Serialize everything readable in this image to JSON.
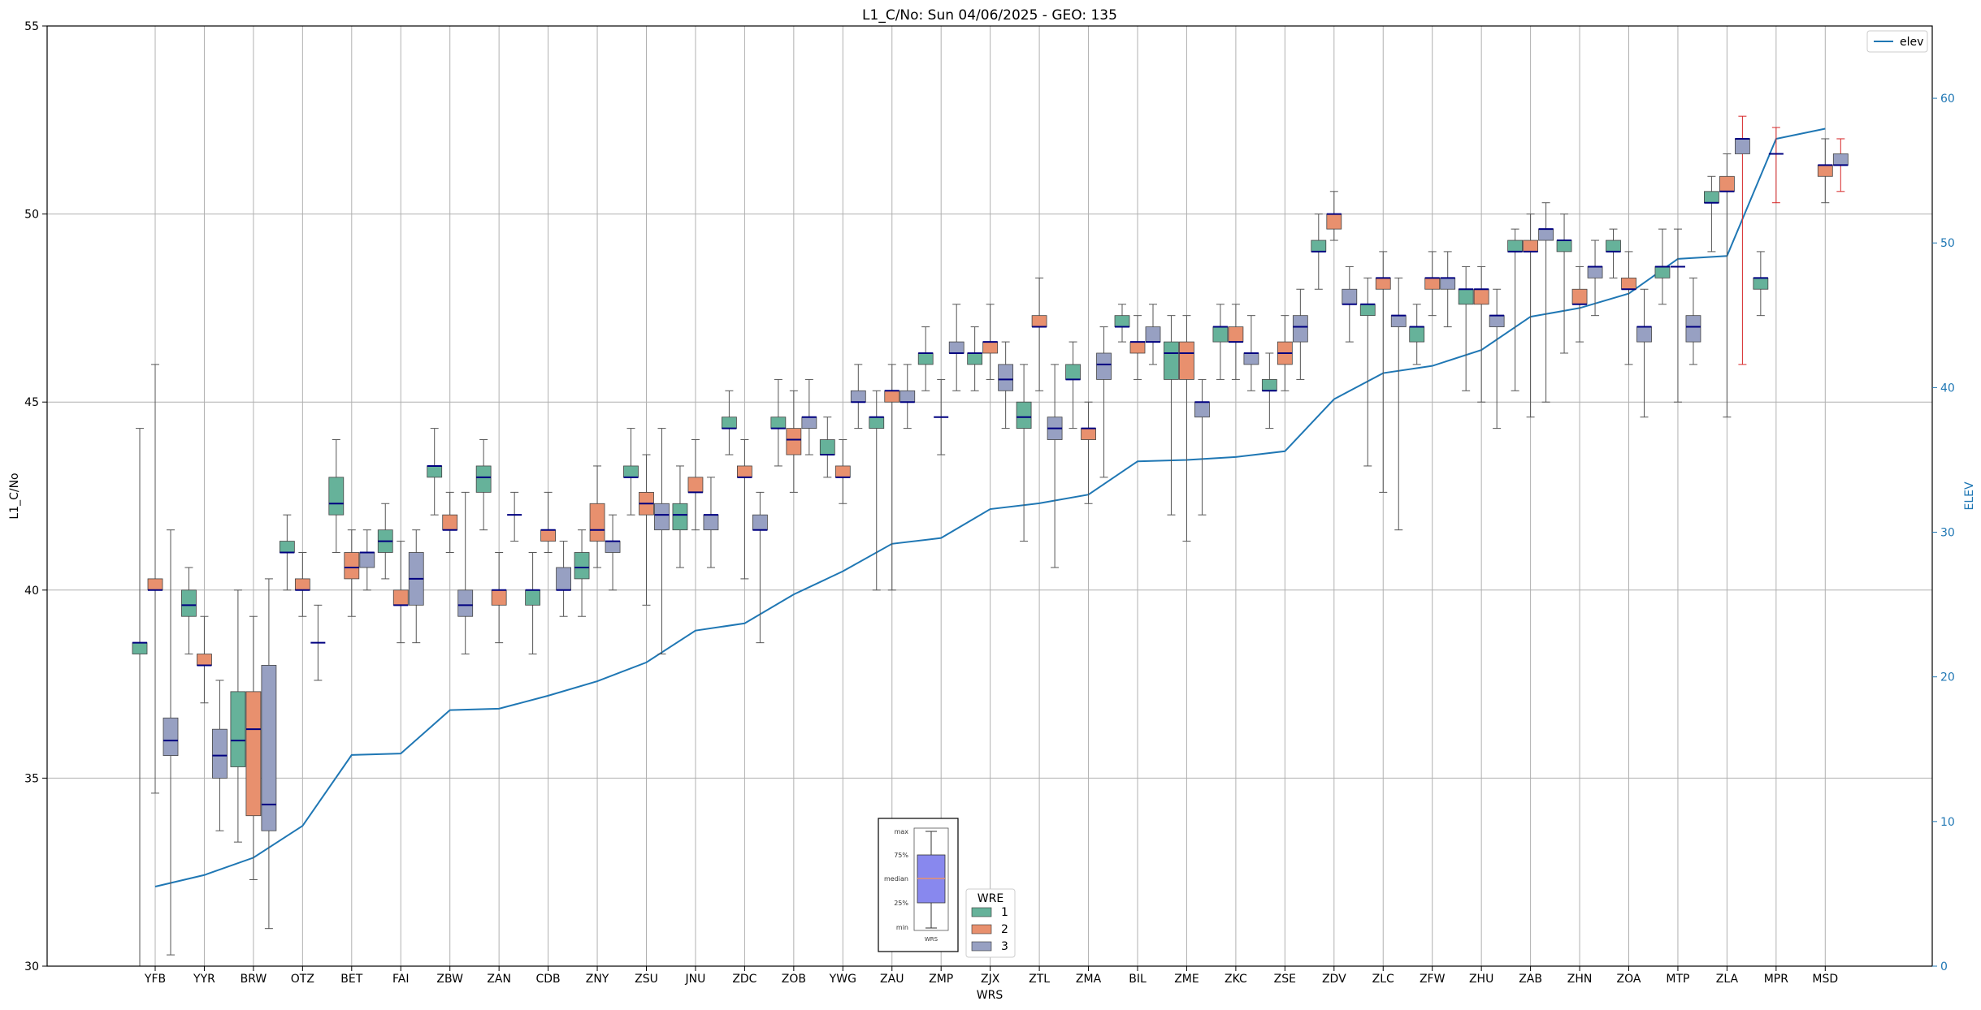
{
  "chart_data": {
    "type": "box",
    "title": "L1_C/No: Sun 04/06/2025 - GEO: 135",
    "xlabel": "WRS",
    "ylabel": "L1_C/No",
    "y2label": "ELEV",
    "ylim": [
      30,
      55
    ],
    "y2lim": [
      0,
      65
    ],
    "yticks": [
      30,
      35,
      40,
      45,
      50,
      55
    ],
    "y2ticks": [
      0,
      10,
      20,
      30,
      40,
      50,
      60
    ],
    "grid": true,
    "categories": [
      "YFB",
      "YYR",
      "BRW",
      "OTZ",
      "BET",
      "FAI",
      "ZBW",
      "ZAN",
      "CDB",
      "ZNY",
      "ZSU",
      "JNU",
      "ZDC",
      "ZOB",
      "YWG",
      "ZAU",
      "ZMP",
      "ZJX",
      "ZTL",
      "ZMA",
      "BIL",
      "ZME",
      "ZKC",
      "ZSE",
      "ZDV",
      "ZLC",
      "ZFW",
      "ZHU",
      "ZAB",
      "ZHN",
      "ZOA",
      "MTP",
      "ZLA",
      "MPR",
      "MSD"
    ],
    "colors": {
      "wre1": "#66b29a",
      "wre2": "#e8906e",
      "wre3": "#97a0c2",
      "median": "#000080",
      "elev_line": "#1f77b4",
      "alt_whisker": "#d62728"
    },
    "legend": {
      "title": "WRE",
      "entries": [
        "1",
        "2",
        "3"
      ],
      "placement": "bottom-center"
    },
    "line_legend": {
      "label": "elev",
      "placement": "top-right"
    },
    "box_key": {
      "labels": [
        "max",
        "75%",
        "median",
        "25%",
        "min"
      ],
      "caption": "WRS"
    },
    "boxes": [
      {
        "cat": "YFB",
        "wre": 1,
        "min": 30.0,
        "q1": 38.3,
        "median": 38.6,
        "q3": 38.6,
        "max": 44.3
      },
      {
        "cat": "YFB",
        "wre": 2,
        "min": 34.6,
        "q1": 40.0,
        "median": 40.0,
        "q3": 40.3,
        "max": 46.0
      },
      {
        "cat": "YFB",
        "wre": 3,
        "min": 30.3,
        "q1": 35.6,
        "median": 36.0,
        "q3": 36.6,
        "max": 41.6
      },
      {
        "cat": "YYR",
        "wre": 1,
        "min": 38.3,
        "q1": 39.3,
        "median": 39.6,
        "q3": 40.0,
        "max": 40.6
      },
      {
        "cat": "YYR",
        "wre": 2,
        "min": 37.0,
        "q1": 38.0,
        "median": 38.0,
        "q3": 38.3,
        "max": 39.3
      },
      {
        "cat": "YYR",
        "wre": 3,
        "min": 33.6,
        "q1": 35.0,
        "median": 35.6,
        "q3": 36.3,
        "max": 37.6
      },
      {
        "cat": "BRW",
        "wre": 1,
        "min": 33.3,
        "q1": 35.3,
        "median": 36.0,
        "q3": 37.3,
        "max": 40.0
      },
      {
        "cat": "BRW",
        "wre": 2,
        "min": 32.3,
        "q1": 34.0,
        "median": 36.3,
        "q3": 37.3,
        "max": 39.3
      },
      {
        "cat": "BRW",
        "wre": 3,
        "min": 31.0,
        "q1": 33.6,
        "median": 34.3,
        "q3": 38.0,
        "max": 40.3
      },
      {
        "cat": "OTZ",
        "wre": 1,
        "min": 40.0,
        "q1": 41.0,
        "median": 41.0,
        "q3": 41.3,
        "max": 42.0
      },
      {
        "cat": "OTZ",
        "wre": 2,
        "min": 39.3,
        "q1": 40.0,
        "median": 40.0,
        "q3": 40.3,
        "max": 41.0
      },
      {
        "cat": "OTZ",
        "wre": 3,
        "min": 37.6,
        "q1": 38.6,
        "median": 38.6,
        "q3": 38.6,
        "max": 39.6
      },
      {
        "cat": "BET",
        "wre": 1,
        "min": 41.0,
        "q1": 42.0,
        "median": 42.3,
        "q3": 43.0,
        "max": 44.0
      },
      {
        "cat": "BET",
        "wre": 2,
        "min": 39.3,
        "q1": 40.3,
        "median": 40.6,
        "q3": 41.0,
        "max": 41.6
      },
      {
        "cat": "BET",
        "wre": 3,
        "min": 40.0,
        "q1": 40.6,
        "median": 41.0,
        "q3": 41.0,
        "max": 41.6
      },
      {
        "cat": "FAI",
        "wre": 1,
        "min": 40.3,
        "q1": 41.0,
        "median": 41.3,
        "q3": 41.6,
        "max": 42.3
      },
      {
        "cat": "FAI",
        "wre": 2,
        "min": 38.6,
        "q1": 39.6,
        "median": 39.6,
        "q3": 40.0,
        "max": 41.3
      },
      {
        "cat": "FAI",
        "wre": 3,
        "min": 38.6,
        "q1": 39.6,
        "median": 40.3,
        "q3": 41.0,
        "max": 41.6
      },
      {
        "cat": "ZBW",
        "wre": 1,
        "min": 42.0,
        "q1": 43.0,
        "median": 43.3,
        "q3": 43.3,
        "max": 44.3
      },
      {
        "cat": "ZBW",
        "wre": 2,
        "min": 41.0,
        "q1": 41.6,
        "median": 41.6,
        "q3": 42.0,
        "max": 42.6
      },
      {
        "cat": "ZBW",
        "wre": 3,
        "min": 38.3,
        "q1": 39.3,
        "median": 39.6,
        "q3": 40.0,
        "max": 42.6
      },
      {
        "cat": "ZAN",
        "wre": 1,
        "min": 41.6,
        "q1": 42.6,
        "median": 43.0,
        "q3": 43.3,
        "max": 44.0
      },
      {
        "cat": "ZAN",
        "wre": 2,
        "min": 38.6,
        "q1": 39.6,
        "median": 40.0,
        "q3": 40.0,
        "max": 41.0
      },
      {
        "cat": "ZAN",
        "wre": 3,
        "min": 41.3,
        "q1": 42.0,
        "median": 42.0,
        "q3": 42.0,
        "max": 42.6
      },
      {
        "cat": "CDB",
        "wre": 1,
        "min": 38.3,
        "q1": 39.6,
        "median": 40.0,
        "q3": 40.0,
        "max": 41.0
      },
      {
        "cat": "CDB",
        "wre": 2,
        "min": 41.0,
        "q1": 41.3,
        "median": 41.6,
        "q3": 41.6,
        "max": 42.6
      },
      {
        "cat": "CDB",
        "wre": 3,
        "min": 39.3,
        "q1": 40.0,
        "median": 40.0,
        "q3": 40.6,
        "max": 41.3
      },
      {
        "cat": "ZNY",
        "wre": 1,
        "min": 39.3,
        "q1": 40.3,
        "median": 40.6,
        "q3": 41.0,
        "max": 41.6
      },
      {
        "cat": "ZNY",
        "wre": 2,
        "min": 40.6,
        "q1": 41.3,
        "median": 41.6,
        "q3": 42.3,
        "max": 43.3
      },
      {
        "cat": "ZNY",
        "wre": 3,
        "min": 40.0,
        "q1": 41.0,
        "median": 41.3,
        "q3": 41.3,
        "max": 42.0
      },
      {
        "cat": "ZSU",
        "wre": 1,
        "min": 42.0,
        "q1": 43.0,
        "median": 43.0,
        "q3": 43.3,
        "max": 44.3
      },
      {
        "cat": "ZSU",
        "wre": 2,
        "min": 39.6,
        "q1": 42.0,
        "median": 42.3,
        "q3": 42.6,
        "max": 43.6
      },
      {
        "cat": "ZSU",
        "wre": 3,
        "min": 38.3,
        "q1": 41.6,
        "median": 42.0,
        "q3": 42.3,
        "max": 44.3
      },
      {
        "cat": "JNU",
        "wre": 1,
        "min": 40.6,
        "q1": 41.6,
        "median": 42.0,
        "q3": 42.3,
        "max": 43.3
      },
      {
        "cat": "JNU",
        "wre": 2,
        "min": 41.6,
        "q1": 42.6,
        "median": 42.6,
        "q3": 43.0,
        "max": 44.0
      },
      {
        "cat": "JNU",
        "wre": 3,
        "min": 40.6,
        "q1": 41.6,
        "median": 42.0,
        "q3": 42.0,
        "max": 43.0
      },
      {
        "cat": "ZDC",
        "wre": 1,
        "min": 43.6,
        "q1": 44.3,
        "median": 44.3,
        "q3": 44.6,
        "max": 45.3
      },
      {
        "cat": "ZDC",
        "wre": 2,
        "min": 40.3,
        "q1": 43.0,
        "median": 43.0,
        "q3": 43.3,
        "max": 44.0
      },
      {
        "cat": "ZDC",
        "wre": 3,
        "min": 38.6,
        "q1": 41.6,
        "median": 41.6,
        "q3": 42.0,
        "max": 42.6
      },
      {
        "cat": "ZOB",
        "wre": 1,
        "min": 43.3,
        "q1": 44.3,
        "median": 44.3,
        "q3": 44.6,
        "max": 45.6
      },
      {
        "cat": "ZOB",
        "wre": 2,
        "min": 42.6,
        "q1": 43.6,
        "median": 44.0,
        "q3": 44.3,
        "max": 45.3
      },
      {
        "cat": "ZOB",
        "wre": 3,
        "min": 43.6,
        "q1": 44.3,
        "median": 44.6,
        "q3": 44.6,
        "max": 45.6
      },
      {
        "cat": "YWG",
        "wre": 1,
        "min": 43.0,
        "q1": 43.6,
        "median": 43.6,
        "q3": 44.0,
        "max": 44.6
      },
      {
        "cat": "YWG",
        "wre": 2,
        "min": 42.3,
        "q1": 43.0,
        "median": 43.0,
        "q3": 43.3,
        "max": 44.0
      },
      {
        "cat": "YWG",
        "wre": 3,
        "min": 44.3,
        "q1": 45.0,
        "median": 45.0,
        "q3": 45.3,
        "max": 46.0
      },
      {
        "cat": "ZAU",
        "wre": 1,
        "min": 40.0,
        "q1": 44.3,
        "median": 44.6,
        "q3": 44.6,
        "max": 45.3
      },
      {
        "cat": "ZAU",
        "wre": 2,
        "min": 40.0,
        "q1": 45.0,
        "median": 45.3,
        "q3": 45.3,
        "max": 46.0
      },
      {
        "cat": "ZAU",
        "wre": 3,
        "min": 44.3,
        "q1": 45.0,
        "median": 45.0,
        "q3": 45.3,
        "max": 46.0
      },
      {
        "cat": "ZMP",
        "wre": 2,
        "min": 43.6,
        "q1": 44.6,
        "median": 44.6,
        "q3": 44.6,
        "max": 45.6
      },
      {
        "cat": "ZMP",
        "wre": 1,
        "min": 45.3,
        "q1": 46.0,
        "median": 46.3,
        "q3": 46.3,
        "max": 47.0
      },
      {
        "cat": "ZMP",
        "wre": 3,
        "min": 45.3,
        "q1": 46.3,
        "median": 46.3,
        "q3": 46.6,
        "max": 47.6
      },
      {
        "cat": "ZJX",
        "wre": 1,
        "min": 45.3,
        "q1": 46.0,
        "median": 46.3,
        "q3": 46.3,
        "max": 47.0
      },
      {
        "cat": "ZJX",
        "wre": 2,
        "min": 45.6,
        "q1": 46.3,
        "median": 46.6,
        "q3": 46.6,
        "max": 47.6
      },
      {
        "cat": "ZJX",
        "wre": 3,
        "min": 44.3,
        "q1": 45.3,
        "median": 45.6,
        "q3": 46.0,
        "max": 46.6
      },
      {
        "cat": "ZTL",
        "wre": 1,
        "min": 41.3,
        "q1": 44.3,
        "median": 44.6,
        "q3": 45.0,
        "max": 46.0
      },
      {
        "cat": "ZTL",
        "wre": 2,
        "min": 45.3,
        "q1": 47.0,
        "median": 47.0,
        "q3": 47.3,
        "max": 48.3
      },
      {
        "cat": "ZTL",
        "wre": 3,
        "min": 40.6,
        "q1": 44.0,
        "median": 44.3,
        "q3": 44.6,
        "max": 46.0
      },
      {
        "cat": "ZMA",
        "wre": 1,
        "min": 44.3,
        "q1": 45.6,
        "median": 45.6,
        "q3": 46.0,
        "max": 46.6
      },
      {
        "cat": "ZMA",
        "wre": 2,
        "min": 42.3,
        "q1": 44.0,
        "median": 44.3,
        "q3": 44.3,
        "max": 45.0
      },
      {
        "cat": "ZMA",
        "wre": 3,
        "min": 43.0,
        "q1": 45.6,
        "median": 46.0,
        "q3": 46.3,
        "max": 47.0
      },
      {
        "cat": "BIL",
        "wre": 1,
        "min": 46.6,
        "q1": 47.0,
        "median": 47.0,
        "q3": 47.3,
        "max": 47.6
      },
      {
        "cat": "BIL",
        "wre": 2,
        "min": 45.6,
        "q1": 46.3,
        "median": 46.6,
        "q3": 46.6,
        "max": 47.3
      },
      {
        "cat": "BIL",
        "wre": 3,
        "min": 46.0,
        "q1": 46.6,
        "median": 46.6,
        "q3": 47.0,
        "max": 47.6
      },
      {
        "cat": "ZME",
        "wre": 1,
        "min": 42.0,
        "q1": 45.6,
        "median": 46.3,
        "q3": 46.6,
        "max": 47.3
      },
      {
        "cat": "ZME",
        "wre": 2,
        "min": 41.3,
        "q1": 45.6,
        "median": 46.3,
        "q3": 46.6,
        "max": 47.3
      },
      {
        "cat": "ZME",
        "wre": 3,
        "min": 42.0,
        "q1": 44.6,
        "median": 45.0,
        "q3": 45.0,
        "max": 45.6
      },
      {
        "cat": "ZKC",
        "wre": 1,
        "min": 45.6,
        "q1": 46.6,
        "median": 47.0,
        "q3": 47.0,
        "max": 47.6
      },
      {
        "cat": "ZKC",
        "wre": 2,
        "min": 45.6,
        "q1": 46.6,
        "median": 46.6,
        "q3": 47.0,
        "max": 47.6
      },
      {
        "cat": "ZKC",
        "wre": 3,
        "min": 45.3,
        "q1": 46.0,
        "median": 46.3,
        "q3": 46.3,
        "max": 47.3
      },
      {
        "cat": "ZSE",
        "wre": 1,
        "min": 44.3,
        "q1": 45.3,
        "median": 45.3,
        "q3": 45.6,
        "max": 46.3
      },
      {
        "cat": "ZSE",
        "wre": 2,
        "min": 45.3,
        "q1": 46.0,
        "median": 46.3,
        "q3": 46.6,
        "max": 47.3
      },
      {
        "cat": "ZSE",
        "wre": 3,
        "min": 45.6,
        "q1": 46.6,
        "median": 47.0,
        "q3": 47.3,
        "max": 48.0
      },
      {
        "cat": "ZDV",
        "wre": 1,
        "min": 48.0,
        "q1": 49.0,
        "median": 49.0,
        "q3": 49.3,
        "max": 50.0
      },
      {
        "cat": "ZDV",
        "wre": 2,
        "min": 49.3,
        "q1": 49.6,
        "median": 50.0,
        "q3": 50.0,
        "max": 50.6
      },
      {
        "cat": "ZDV",
        "wre": 3,
        "min": 46.6,
        "q1": 47.6,
        "median": 47.6,
        "q3": 48.0,
        "max": 48.6
      },
      {
        "cat": "ZLC",
        "wre": 1,
        "min": 43.3,
        "q1": 47.3,
        "median": 47.6,
        "q3": 47.6,
        "max": 48.3
      },
      {
        "cat": "ZLC",
        "wre": 2,
        "min": 42.6,
        "q1": 48.0,
        "median": 48.3,
        "q3": 48.3,
        "max": 49.0
      },
      {
        "cat": "ZLC",
        "wre": 3,
        "min": 41.6,
        "q1": 47.0,
        "median": 47.3,
        "q3": 47.3,
        "max": 48.3
      },
      {
        "cat": "ZFW",
        "wre": 1,
        "min": 46.0,
        "q1": 46.6,
        "median": 47.0,
        "q3": 47.0,
        "max": 47.6
      },
      {
        "cat": "ZFW",
        "wre": 2,
        "min": 47.3,
        "q1": 48.0,
        "median": 48.3,
        "q3": 48.3,
        "max": 49.0
      },
      {
        "cat": "ZFW",
        "wre": 3,
        "min": 47.0,
        "q1": 48.0,
        "median": 48.3,
        "q3": 48.3,
        "max": 49.0
      },
      {
        "cat": "ZHU",
        "wre": 1,
        "min": 45.3,
        "q1": 47.6,
        "median": 48.0,
        "q3": 48.0,
        "max": 48.6
      },
      {
        "cat": "ZHU",
        "wre": 2,
        "min": 45.0,
        "q1": 47.6,
        "median": 48.0,
        "q3": 48.0,
        "max": 48.6
      },
      {
        "cat": "ZHU",
        "wre": 3,
        "min": 44.3,
        "q1": 47.0,
        "median": 47.3,
        "q3": 47.3,
        "max": 48.0
      },
      {
        "cat": "ZAB",
        "wre": 1,
        "min": 45.3,
        "q1": 49.0,
        "median": 49.0,
        "q3": 49.3,
        "max": 49.6
      },
      {
        "cat": "ZAB",
        "wre": 2,
        "min": 44.6,
        "q1": 49.0,
        "median": 49.0,
        "q3": 49.3,
        "max": 50.0
      },
      {
        "cat": "ZAB",
        "wre": 3,
        "min": 45.0,
        "q1": 49.3,
        "median": 49.6,
        "q3": 49.6,
        "max": 50.3
      },
      {
        "cat": "ZHN",
        "wre": 1,
        "min": 46.3,
        "q1": 49.0,
        "median": 49.3,
        "q3": 49.3,
        "max": 50.0
      },
      {
        "cat": "ZHN",
        "wre": 2,
        "min": 46.6,
        "q1": 47.6,
        "median": 47.6,
        "q3": 48.0,
        "max": 48.6
      },
      {
        "cat": "ZHN",
        "wre": 3,
        "min": 47.3,
        "q1": 48.3,
        "median": 48.6,
        "q3": 48.6,
        "max": 49.3
      },
      {
        "cat": "ZOA",
        "wre": 1,
        "min": 48.3,
        "q1": 49.0,
        "median": 49.0,
        "q3": 49.3,
        "max": 49.6
      },
      {
        "cat": "ZOA",
        "wre": 2,
        "min": 46.0,
        "q1": 48.0,
        "median": 48.0,
        "q3": 48.3,
        "max": 49.0
      },
      {
        "cat": "ZOA",
        "wre": 3,
        "min": 44.6,
        "q1": 46.6,
        "median": 47.0,
        "q3": 47.0,
        "max": 48.0
      },
      {
        "cat": "MTP",
        "wre": 1,
        "min": 47.6,
        "q1": 48.3,
        "median": 48.6,
        "q3": 48.6,
        "max": 49.6
      },
      {
        "cat": "MTP",
        "wre": 3,
        "min": 46.0,
        "q1": 46.6,
        "median": 47.0,
        "q3": 47.3,
        "max": 48.3
      },
      {
        "cat": "MTP",
        "wre": "extra",
        "min": 45.0,
        "q1": 48.6,
        "median": 48.6,
        "q3": 48.6,
        "max": 49.6
      },
      {
        "cat": "ZLA",
        "wre": 2,
        "min": 44.6,
        "q1": 50.6,
        "median": 50.6,
        "q3": 51.0,
        "max": 51.6
      },
      {
        "cat": "ZLA",
        "wre": 3,
        "min": 46.0,
        "q1": 51.6,
        "median": 52.0,
        "q3": 52.0,
        "max": 52.6,
        "red": true
      },
      {
        "cat": "ZLA",
        "wre": 1,
        "min": 49.0,
        "q1": 50.3,
        "median": 50.3,
        "q3": 50.6,
        "max": 51.0
      },
      {
        "cat": "MPR",
        "wre": 2,
        "min": 50.3,
        "q1": 51.6,
        "median": 51.6,
        "q3": 51.6,
        "max": 52.3,
        "red": true
      },
      {
        "cat": "MPR",
        "wre": 1,
        "min": 47.3,
        "q1": 48.0,
        "median": 48.3,
        "q3": 48.3,
        "max": 49.0
      },
      {
        "cat": "MSD",
        "wre": 2,
        "min": 50.3,
        "q1": 51.0,
        "median": 51.3,
        "q3": 51.3,
        "max": 52.0
      },
      {
        "cat": "MSD",
        "wre": 3,
        "min": 50.6,
        "q1": 51.3,
        "median": 51.3,
        "q3": 51.6,
        "max": 52.0,
        "red": true
      }
    ],
    "elev": {
      "name": "elev",
      "x": [
        "YFB",
        "YYR",
        "BRW",
        "OTZ",
        "BET",
        "FAI",
        "ZBW",
        "ZAN",
        "CDB",
        "ZNY",
        "ZSU",
        "JNU",
        "ZDC",
        "ZOB",
        "YWG",
        "ZAU",
        "ZMP",
        "ZJX",
        "ZTL",
        "ZMA",
        "BIL",
        "ZME",
        "ZKC",
        "ZSE",
        "ZDV",
        "ZLC",
        "ZFW",
        "ZHU",
        "ZAB",
        "ZHN",
        "ZOA",
        "MTP",
        "ZLA",
        "MPR",
        "MSD"
      ],
      "values": [
        5.5,
        6.3,
        7.5,
        9.7,
        14.6,
        14.7,
        17.7,
        17.8,
        18.7,
        19.7,
        21.0,
        23.2,
        23.7,
        25.7,
        27.3,
        29.2,
        29.6,
        31.6,
        32.0,
        32.6,
        34.9,
        35.0,
        35.2,
        35.6,
        39.2,
        41.0,
        41.5,
        42.6,
        44.9,
        45.5,
        46.5,
        48.9,
        49.1,
        57.2,
        57.9
      ]
    }
  }
}
